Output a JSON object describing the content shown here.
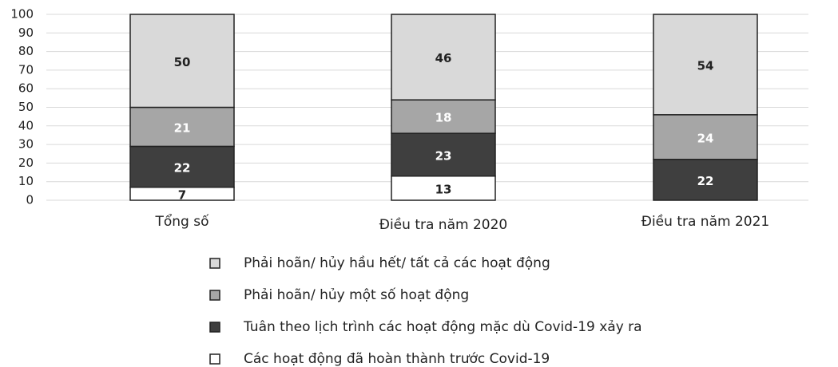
{
  "chart_data": {
    "type": "stacked_bar",
    "categories": [
      "Tổng số",
      "Điều tra năm 2020",
      "Điều tra năm 2021"
    ],
    "series": [
      {
        "name": "Các hoạt động đã hoàn thành trước Covid-19",
        "color": "#ffffff",
        "values": [
          7,
          13,
          null
        ]
      },
      {
        "name": "Tuân theo lịch trình các hoạt động mặc dù Covid-19 xảy ra",
        "color": "#3f3f3f",
        "values": [
          22,
          23,
          22
        ]
      },
      {
        "name": "Phải hoãn/ hủy một số hoạt động",
        "color": "#a6a6a6",
        "values": [
          21,
          18,
          24
        ]
      },
      {
        "name": "Phải hoãn/ hủy hầu hết/ tất cả các hoạt động",
        "color": "#d9d9d9",
        "values": [
          50,
          46,
          54
        ]
      }
    ],
    "ylim": [
      0,
      100
    ],
    "yticks": [
      0,
      10,
      20,
      30,
      40,
      50,
      60,
      70,
      80,
      90,
      100
    ],
    "grid": true,
    "legend": "bottom"
  }
}
